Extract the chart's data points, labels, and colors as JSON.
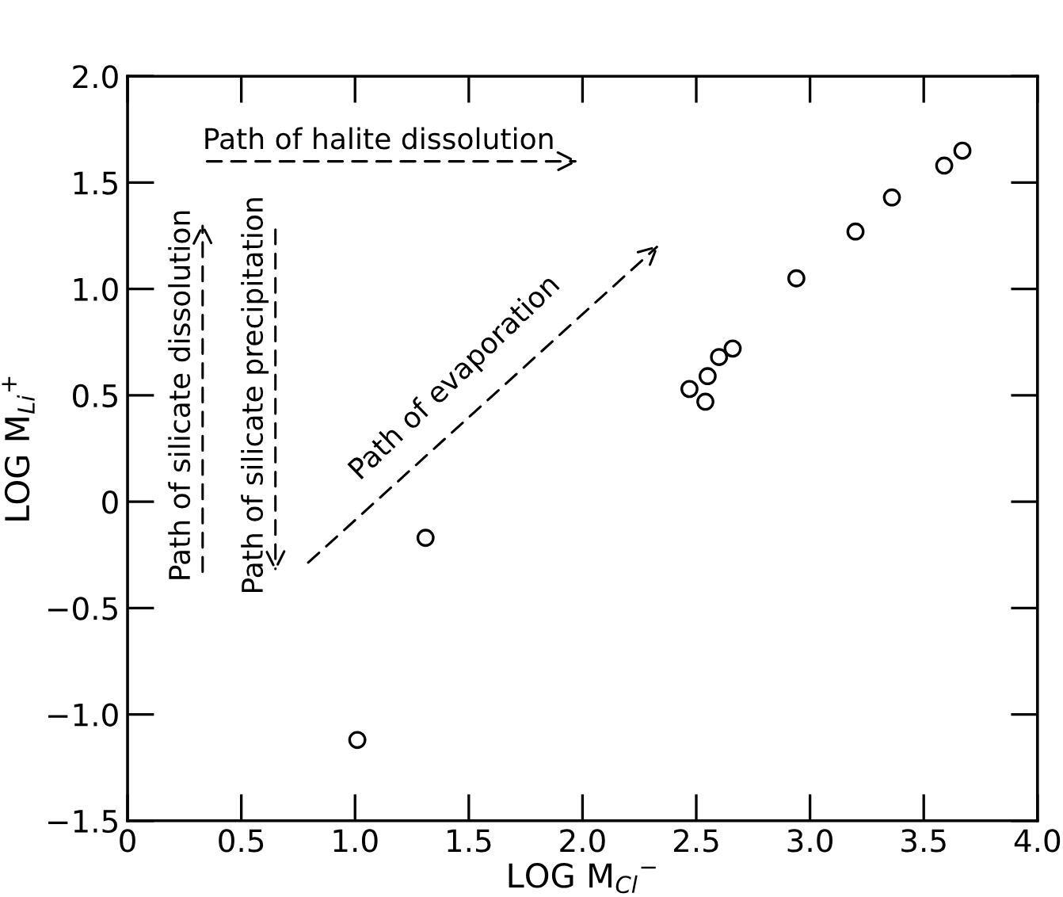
{
  "chart_data": {
    "type": "scatter",
    "xlabel": "LOG M$_{Cl}$$^{−}$",
    "ylabel": "LOG M$_{Li}$$^{+}$",
    "x": [
      1.01,
      1.31,
      2.47,
      2.54,
      2.55,
      2.6,
      2.66,
      2.94,
      3.2,
      3.36,
      3.59,
      3.67
    ],
    "series": [
      {
        "color": "#000000",
        "values": [
          -1.12,
          -0.17,
          0.53,
          0.47,
          0.59,
          0.68,
          0.72,
          1.05,
          1.27,
          1.43,
          1.58,
          1.65
        ]
      }
    ],
    "marker": "circle",
    "grid": false,
    "legend": false,
    "xlim": [
      0,
      4
    ],
    "ylim": [
      -1.5,
      2
    ],
    "xticks": [
      0,
      {
        "value": 0.5,
        "label": "0.5"
      },
      {
        "value": 1,
        "label": "1.0"
      },
      {
        "value": 1.5,
        "label": "1.5"
      },
      {
        "value": 2,
        "label": "2.0"
      },
      {
        "value": 2.5,
        "label": "2.5"
      },
      {
        "value": 3,
        "label": "3.0"
      },
      {
        "value": 3.5,
        "label": "3.5"
      },
      {
        "value": 4,
        "label": "4.0"
      }
    ],
    "yticks": [
      {
        "value": -1.5,
        "label": "−1.5"
      },
      {
        "value": -1,
        "label": "−1.0"
      },
      {
        "value": -0.5,
        "label": "−0.5"
      },
      0,
      {
        "value": 0.5,
        "label": "0.5"
      },
      {
        "value": 1,
        "label": "1.0"
      },
      {
        "value": 1.5,
        "label": "1.5"
      },
      {
        "value": 2,
        "label": "2.0"
      }
    ],
    "annotations": [
      "Path of halite dissolution",
      "Path of silicate dissolution",
      "Path of silicate precipitation",
      "Path of evaporation"
    ]
  }
}
